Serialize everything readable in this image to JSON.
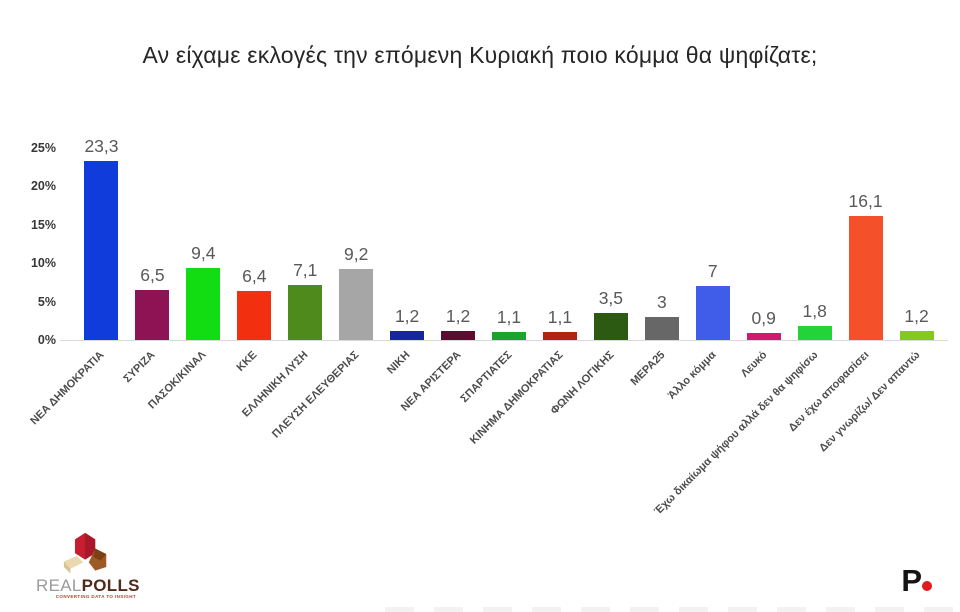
{
  "chart_data": {
    "type": "bar",
    "title": "Αν είχαμε εκλογές την επόμενη Κυριακή ποιο κόμμα θα ψηφίζατε;",
    "xlabel": "",
    "ylabel": "",
    "ylim": [
      0,
      25
    ],
    "grid": false,
    "legend": false,
    "ytick_values": [
      0,
      5,
      10,
      15,
      20,
      25
    ],
    "ytick_labels": [
      "0%",
      "5%",
      "10%",
      "15%",
      "20%",
      "25%"
    ],
    "categories": [
      "ΝΕΑ ΔΗΜΟΚΡΑΤΙΑ",
      "ΣΥΡΙΖΑ",
      "ΠΑΣΟΚ/ΚΙΝΑΛ",
      "ΚΚΕ",
      "ΕΛΛΗΝΙΚΗ ΛΥΣΗ",
      "ΠΛΕΥΣΗ ΕΛΕΥΘΕΡΙΑΣ",
      "ΝΙΚΗ",
      "ΝΕΑ ΑΡΙΣΤΕΡΑ",
      "ΣΠΑΡΤΙΑΤΕΣ",
      "ΚΙΝΗΜΑ ΔΗΜΟΚΡΑΤΙΑΣ",
      "ΦΩΝΗ ΛΟΓΙΚΗΣ",
      "ΜΕΡΑ25",
      "Άλλο κόμμα",
      "Λευκό",
      "Έχω δικαίωμα ψήφου αλλά δεν θα ψηφίσω",
      "Δεν έχω αποφασίσει",
      "Δεν γνωρίζω/ Δεν απαντώ"
    ],
    "values": [
      23.3,
      6.5,
      9.4,
      6.4,
      7.1,
      9.2,
      1.2,
      1.2,
      1.1,
      1.1,
      3.5,
      3,
      7,
      0.9,
      1.8,
      16.1,
      1.2
    ],
    "value_labels": [
      "23,3",
      "6,5",
      "9,4",
      "6,4",
      "7,1",
      "9,2",
      "1,2",
      "1,2",
      "1,1",
      "1,1",
      "3,5",
      "3",
      "7",
      "0,9",
      "1,8",
      "16,1",
      "1,2"
    ],
    "bar_colors": [
      "#0f3cdb",
      "#8e1354",
      "#12dd12",
      "#f2300f",
      "#4f8a1c",
      "#a6a6a6",
      "#17259e",
      "#5c0d2f",
      "#1aa32e",
      "#b02313",
      "#2d5a12",
      "#676767",
      "#3f5de8",
      "#cc1a6e",
      "#22d43a",
      "#f4502a",
      "#84c820"
    ]
  },
  "footer": {
    "realpolls": {
      "real": "REAL",
      "polls": "POLLS",
      "tagline": "CONVERTING DATA TO INSIGHT"
    },
    "protothema": {
      "letter": "P"
    }
  },
  "colors": {
    "value_label": "#595959",
    "axis_line": "#d9d9d9",
    "accent_red": "#e01b1e"
  }
}
